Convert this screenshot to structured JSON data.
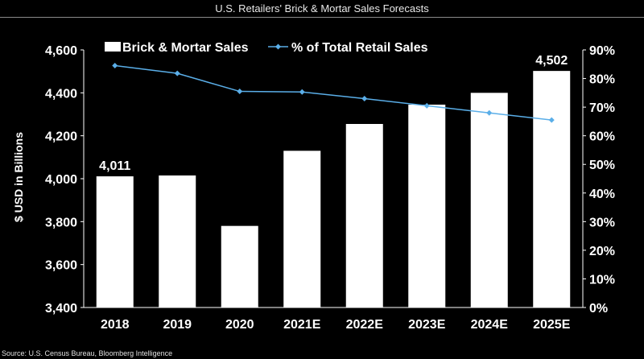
{
  "title": "U.S. Retailers' Brick & Mortar Sales Forecasts",
  "source": "Source: U.S. Census Bureau, Bloomberg Intelligence",
  "chart_data": {
    "type": "bar",
    "categories": [
      "2018",
      "2019",
      "2020",
      "2021E",
      "2022E",
      "2023E",
      "2024E",
      "2025E"
    ],
    "ylabel": "$ USD in Billions",
    "ylim": [
      3400,
      4600
    ],
    "yticks": [
      "3,400",
      "3,600",
      "3,800",
      "4,000",
      "4,200",
      "4,400",
      "4,600"
    ],
    "y2lim": [
      0,
      90
    ],
    "y2ticks": [
      "0%",
      "10%",
      "20%",
      "30%",
      "40%",
      "50%",
      "60%",
      "70%",
      "80%",
      "90%"
    ],
    "grid": false,
    "legend": "top",
    "series": [
      {
        "name": "Brick & Mortar Sales",
        "type": "bar",
        "axis": "left",
        "values": [
          4011,
          4015,
          3780,
          4130,
          4255,
          4345,
          4400,
          4502
        ]
      },
      {
        "name": "% of Total Retail Sales",
        "type": "line",
        "axis": "right",
        "values": [
          84.5,
          81.8,
          75.5,
          75.3,
          73.0,
          70.5,
          68.0,
          65.5
        ]
      }
    ],
    "data_labels": [
      {
        "index": 0,
        "text": "4,011"
      },
      {
        "index": 7,
        "text": "4,502"
      }
    ],
    "colors": {
      "bar": "#ffffff",
      "line": "#5aaee8",
      "background": "#000000",
      "text": "#ffffff"
    }
  }
}
